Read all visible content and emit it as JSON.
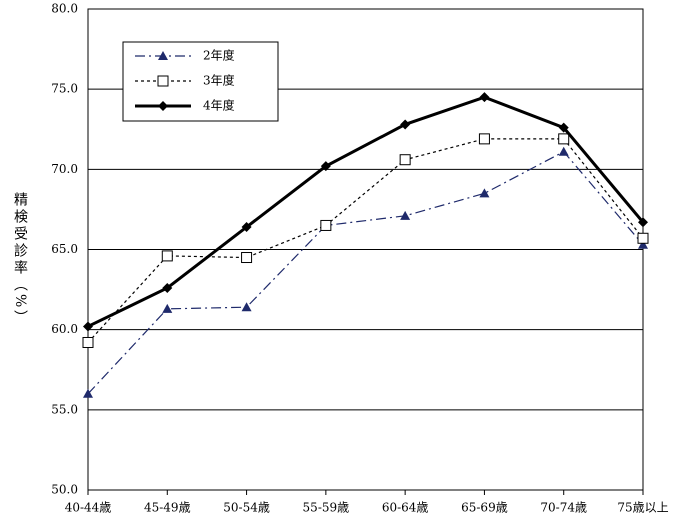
{
  "chart_data": {
    "type": "line",
    "y_label": "精検受診率（%）",
    "categories": [
      "40-44歳",
      "45-49歳",
      "50-54歳",
      "55-59歳",
      "60-64歳",
      "65-69歳",
      "70-74歳",
      "75歳以上"
    ],
    "series": [
      {
        "name": "2年度",
        "color": "#1f2a6b",
        "dash": "10,4,2,4",
        "marker": "triangle",
        "width": 1.2,
        "values": [
          56.0,
          61.3,
          61.4,
          66.5,
          67.1,
          68.5,
          71.1,
          65.3
        ]
      },
      {
        "name": "3年度",
        "color": "#000000",
        "dash": "3,3",
        "marker": "square",
        "width": 1.2,
        "values": [
          59.2,
          64.6,
          64.5,
          66.5,
          70.6,
          71.9,
          71.9,
          65.7
        ]
      },
      {
        "name": "4年度",
        "color": "#000000",
        "dash": "none",
        "marker": "diamond",
        "width": 3,
        "values": [
          60.2,
          62.6,
          66.4,
          70.2,
          72.8,
          74.5,
          72.6,
          66.7
        ]
      }
    ],
    "ylim": [
      50,
      80
    ],
    "yticks": [
      {
        "value": 50,
        "label": "50.0"
      },
      {
        "value": 55,
        "label": "55.0"
      },
      {
        "value": 60,
        "label": "60.0"
      },
      {
        "value": 65,
        "label": "65.0"
      },
      {
        "value": 70,
        "label": "70.0"
      },
      {
        "value": 75,
        "label": "75.0"
      },
      {
        "value": 80,
        "label": "80.0"
      }
    ],
    "grid": true,
    "legend": "upper-left"
  }
}
